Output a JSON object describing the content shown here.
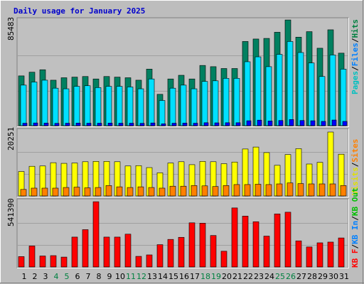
{
  "chart_data": [
    {
      "type": "bar",
      "title": "Daily usage for January 2025",
      "panel": "top",
      "max_label": "85483",
      "legend": [
        {
          "text": "Pages",
          "color": "#00c0c0"
        },
        {
          "text": "Files",
          "color": "#0080ff"
        },
        {
          "text": "Hits",
          "color": "#008040"
        }
      ],
      "categories": [
        "1",
        "2",
        "3",
        "4",
        "5",
        "6",
        "7",
        "8",
        "9",
        "10",
        "11",
        "12",
        "13",
        "14",
        "15",
        "16",
        "17",
        "18",
        "19",
        "20",
        "21",
        "22",
        "23",
        "24",
        "25",
        "26",
        "27",
        "28",
        "29",
        "30",
        "31"
      ],
      "weekend_days": [
        "4",
        "5",
        "11",
        "12",
        "18",
        "19",
        "25",
        "26"
      ],
      "series": [
        {
          "name": "Hits",
          "color": "#008060",
          "values": [
            40500,
            43500,
            45500,
            37000,
            39000,
            39500,
            40000,
            38000,
            40000,
            39500,
            39000,
            37000,
            46000,
            25500,
            38000,
            41000,
            38000,
            49000,
            48000,
            46500,
            46500,
            68500,
            70500,
            71000,
            76000,
            86000,
            72000,
            76500,
            63000,
            78000,
            59000
          ]
        },
        {
          "name": "Files",
          "color": "#00e0ff",
          "values": [
            33000,
            35500,
            37000,
            30500,
            30000,
            32000,
            32500,
            31000,
            32000,
            32000,
            31500,
            30000,
            38000,
            20500,
            30500,
            33000,
            30000,
            36000,
            36500,
            38500,
            38500,
            52000,
            56000,
            48000,
            58000,
            68500,
            59500,
            51000,
            40000,
            57500,
            46000
          ]
        },
        {
          "name": "Pages",
          "color": "#0000ff",
          "values": [
            2000,
            2200,
            2100,
            1900,
            2000,
            2100,
            2000,
            2000,
            2100,
            2000,
            2000,
            1900,
            2200,
            1500,
            2000,
            2100,
            2000,
            2400,
            2300,
            2400,
            2400,
            4000,
            4500,
            3800,
            4200,
            5000,
            4200,
            4000,
            3500,
            4600,
            3500
          ]
        }
      ]
    },
    {
      "type": "bar",
      "panel": "middle",
      "max_label": "20251",
      "legend": [
        {
          "text": "Visits",
          "color": "#e0e000"
        },
        {
          "text": "/",
          "color": "#000000"
        },
        {
          "text": "Sites",
          "color": "#ff8000"
        }
      ],
      "categories": [
        "1",
        "2",
        "3",
        "4",
        "5",
        "6",
        "7",
        "8",
        "9",
        "10",
        "11",
        "12",
        "13",
        "14",
        "15",
        "16",
        "17",
        "18",
        "19",
        "20",
        "21",
        "22",
        "23",
        "24",
        "25",
        "26",
        "27",
        "28",
        "29",
        "30",
        "31"
      ],
      "series": [
        {
          "name": "Visits",
          "color": "#ffff00",
          "values": [
            7500,
            9100,
            9200,
            10200,
            10000,
            10100,
            10500,
            10600,
            10600,
            10500,
            9200,
            9300,
            8700,
            7100,
            10100,
            10500,
            9600,
            10600,
            10500,
            9900,
            10400,
            14400,
            15000,
            13300,
            9400,
            12700,
            14500,
            9800,
            10300,
            19600,
            12800
          ]
        },
        {
          "name": "Sites",
          "color": "#ff8000",
          "values": [
            2000,
            2400,
            2400,
            2400,
            2600,
            2700,
            2500,
            2600,
            3200,
            2800,
            2600,
            2800,
            2600,
            2400,
            3000,
            3000,
            3200,
            3100,
            2900,
            3200,
            3500,
            3500,
            3600,
            3500,
            3700,
            4000,
            3800,
            3700,
            3700,
            3700,
            3200
          ]
        }
      ]
    },
    {
      "type": "bar",
      "panel": "bottom",
      "max_label": "541390",
      "legend": [
        {
          "text": "KB F",
          "color": "#ff0000"
        },
        {
          "text": "/",
          "color": "#000000"
        },
        {
          "text": "KB In",
          "color": "#0080ff"
        },
        {
          "text": "/",
          "color": "#000000"
        },
        {
          "text": "KB Out",
          "color": "#00c000"
        }
      ],
      "categories": [
        "1",
        "2",
        "3",
        "4",
        "5",
        "6",
        "7",
        "8",
        "9",
        "10",
        "11",
        "12",
        "13",
        "14",
        "15",
        "16",
        "17",
        "18",
        "19",
        "20",
        "21",
        "22",
        "23",
        "24",
        "25",
        "26",
        "27",
        "28",
        "29",
        "30",
        "31"
      ],
      "series": [
        {
          "name": "KB F",
          "color": "#ff0000",
          "values": [
            85000,
            172000,
            90000,
            93000,
            81000,
            245000,
            306000,
            535000,
            245000,
            245000,
            269000,
            87000,
            99000,
            183000,
            226000,
            243000,
            362000,
            359000,
            258000,
            129000,
            484000,
            417000,
            371000,
            253000,
            435000,
            449000,
            214000,
            164000,
            198000,
            204000,
            238000
          ]
        }
      ]
    }
  ]
}
